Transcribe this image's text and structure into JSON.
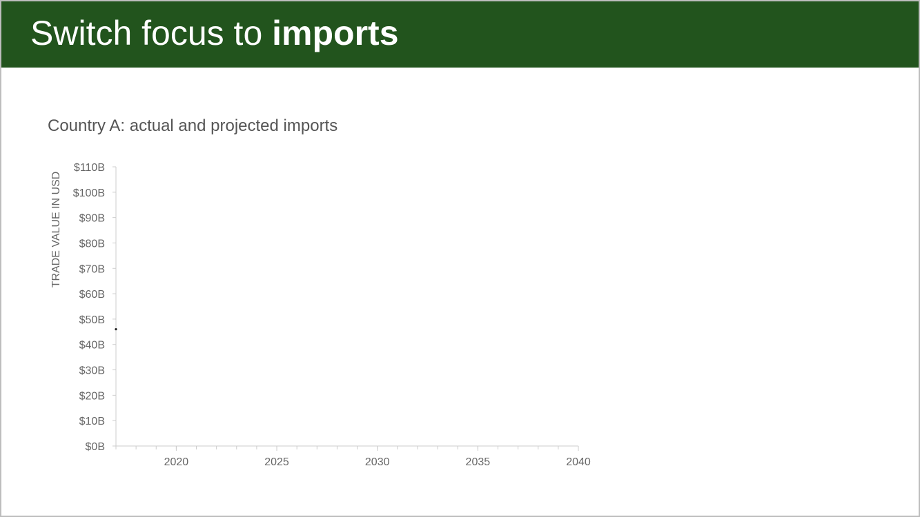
{
  "slide": {
    "title_prefix": "Switch focus to ",
    "title_emphasis": "imports",
    "banner_color": "#22541d"
  },
  "chart_data": {
    "type": "line",
    "title": "Country A: actual and projected imports",
    "ylabel": "TRADE VALUE IN USD",
    "xlabel": "",
    "xlim": [
      2017,
      2040
    ],
    "ylim": [
      0,
      110
    ],
    "x_ticks": [
      2020,
      2025,
      2030,
      2035,
      2040
    ],
    "y_ticks": [
      0,
      10,
      20,
      30,
      40,
      50,
      60,
      70,
      80,
      90,
      100,
      110
    ],
    "y_tick_labels": [
      "$0B",
      "$10B",
      "$20B",
      "$30B",
      "$40B",
      "$50B",
      "$60B",
      "$70B",
      "$80B",
      "$90B",
      "$100B",
      "$110B"
    ],
    "grid": false,
    "series": [
      {
        "x": [
          2017
        ],
        "values": [
          46
        ],
        "color": "#222222"
      }
    ],
    "colors": {
      "axis": "#cccccc",
      "tick_text": "#666666"
    }
  }
}
